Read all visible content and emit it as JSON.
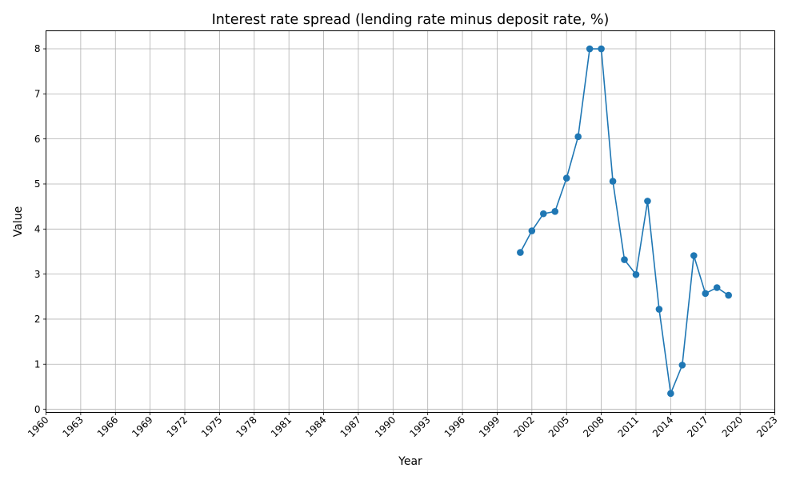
{
  "chart_data": {
    "type": "line",
    "title": "Interest rate spread (lending rate minus deposit rate, %)",
    "xlabel": "Year",
    "ylabel": "Value",
    "xlim": [
      1960,
      2023
    ],
    "ylim": [
      0,
      8.4
    ],
    "x_ticks": [
      "1960",
      "1963",
      "1966",
      "1969",
      "1972",
      "1975",
      "1978",
      "1981",
      "1984",
      "1987",
      "1990",
      "1993",
      "1996",
      "1999",
      "2002",
      "2005",
      "2008",
      "2011",
      "2014",
      "2017",
      "2020",
      "2023"
    ],
    "y_ticks": [
      "0",
      "1",
      "2",
      "3",
      "4",
      "5",
      "6",
      "7",
      "8"
    ],
    "grid": true,
    "series": [
      {
        "color": "#1f77b4",
        "marker": "circle",
        "x": [
          2001,
          2002,
          2003,
          2004,
          2005,
          2006,
          2007,
          2008,
          2009,
          2010,
          2011,
          2012,
          2013,
          2014,
          2015,
          2016,
          2017,
          2018,
          2019
        ],
        "values": [
          3.48,
          3.96,
          4.34,
          4.39,
          5.13,
          6.05,
          8.0,
          8.0,
          5.06,
          3.32,
          2.99,
          4.62,
          2.22,
          0.35,
          0.98,
          3.41,
          2.57,
          2.7,
          2.53
        ]
      }
    ]
  }
}
